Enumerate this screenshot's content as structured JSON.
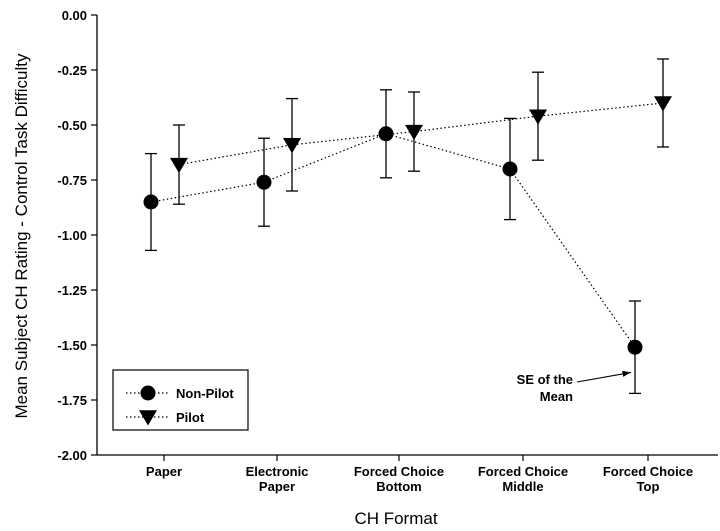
{
  "chart_data": {
    "type": "line",
    "xlabel": "CH Format",
    "ylabel": "Mean Subject CH Rating - Control Task Difficulty",
    "ylim": [
      -2.0,
      0.0
    ],
    "yticks": [
      "0.00",
      "-0.25",
      "-0.50",
      "-0.75",
      "-1.00",
      "-1.25",
      "-1.50",
      "-1.75",
      "-2.00"
    ],
    "categories": [
      [
        "Paper"
      ],
      [
        "Electronic",
        "Paper"
      ],
      [
        "Forced Choice",
        "Bottom"
      ],
      [
        "Forced Choice",
        "Middle"
      ],
      [
        "Forced Choice",
        "Top"
      ]
    ],
    "series": [
      {
        "name": "Non-Pilot",
        "marker": "circle",
        "values": [
          -0.85,
          -0.76,
          -0.54,
          -0.7,
          -1.51
        ],
        "err_low": [
          -1.07,
          -0.96,
          -0.74,
          -0.93,
          -1.72
        ],
        "err_high": [
          -0.63,
          -0.56,
          -0.34,
          -0.47,
          -1.3
        ]
      },
      {
        "name": "Pilot",
        "marker": "triangle-down",
        "values": [
          -0.68,
          -0.59,
          -0.53,
          -0.46,
          -0.4
        ],
        "err_low": [
          -0.86,
          -0.8,
          -0.71,
          -0.66,
          -0.6
        ],
        "err_high": [
          -0.5,
          -0.38,
          -0.35,
          -0.26,
          -0.2
        ]
      }
    ],
    "annotation": {
      "lines": [
        "SE of the",
        "Mean"
      ],
      "target_series": "Non-Pilot",
      "target_index": 4
    },
    "legend_position": "bottom-left",
    "grid": false,
    "line_style": "dotted"
  }
}
